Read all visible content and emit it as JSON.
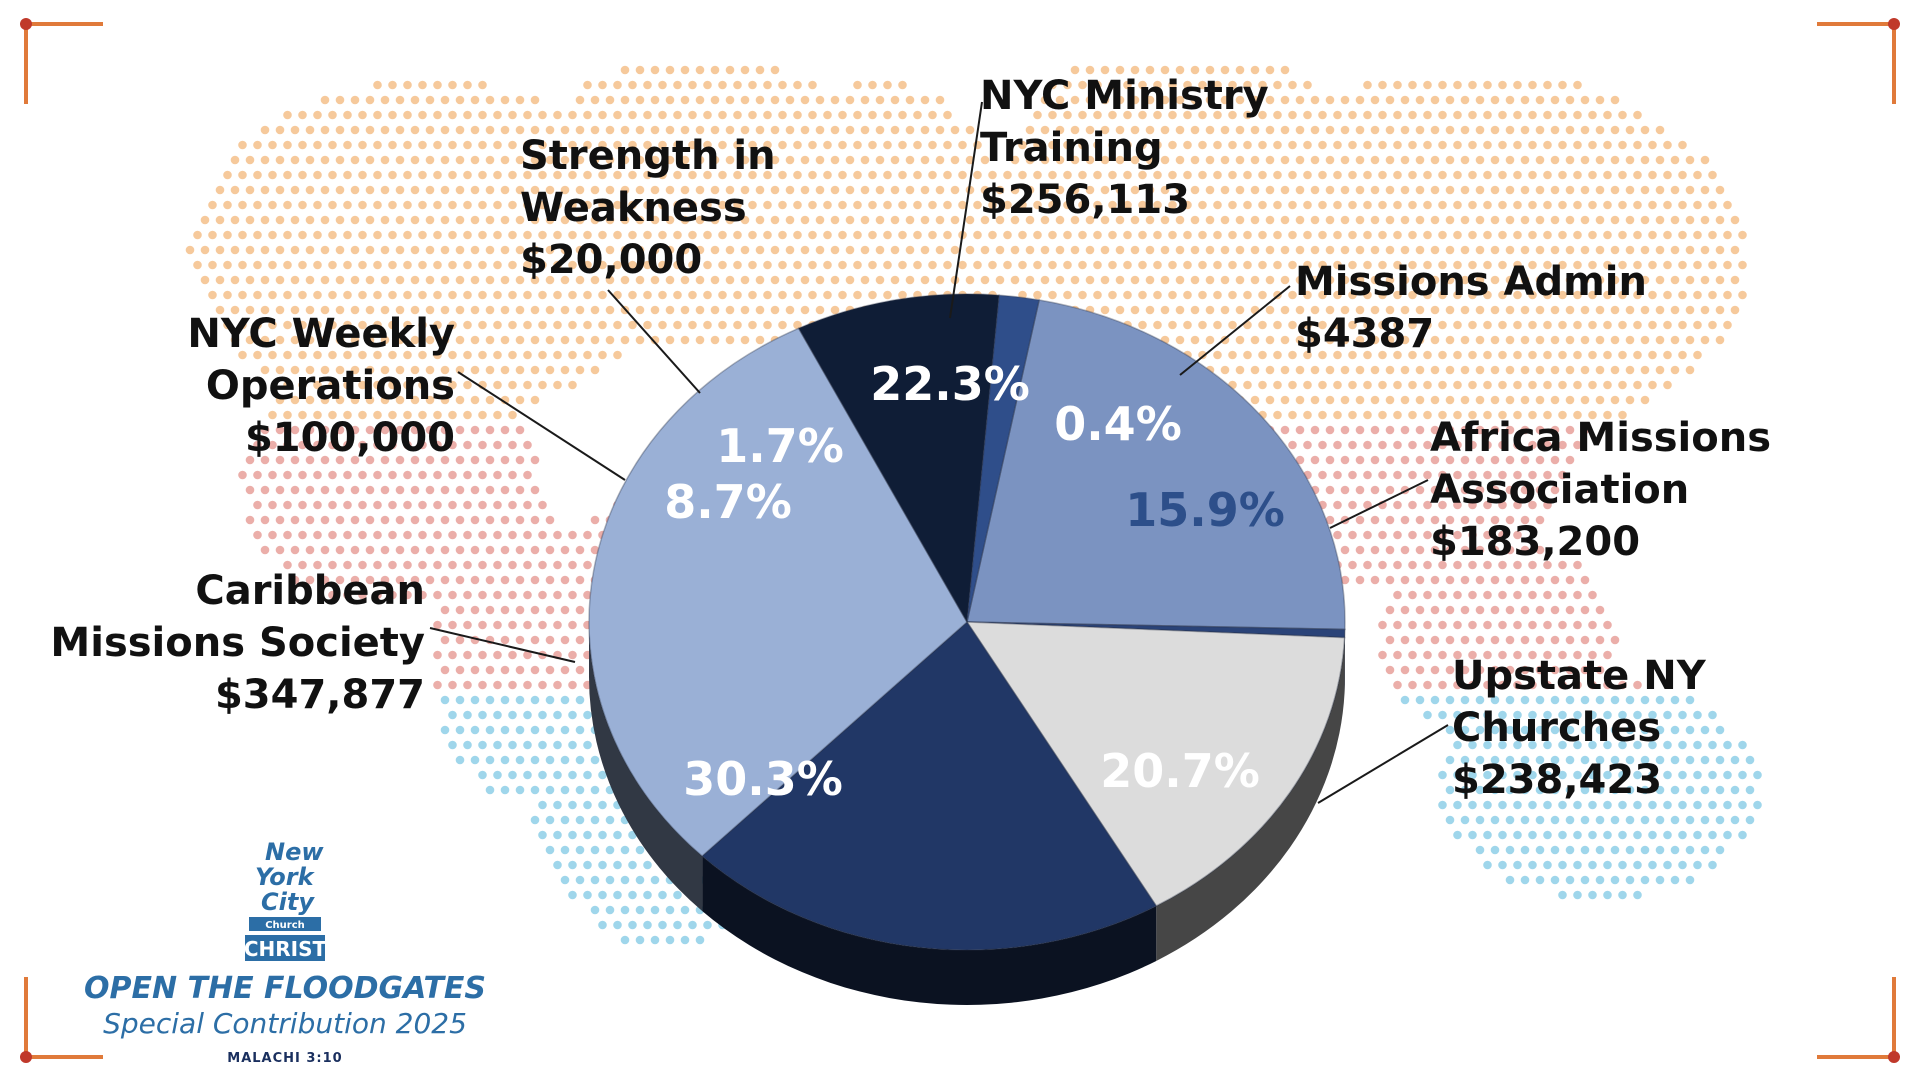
{
  "chart_data": {
    "type": "pie",
    "slices": [
      {
        "label_lines": [
          "NYC Ministry",
          "Training"
        ],
        "amount": "$256,113",
        "pct": 22.3,
        "pct_label": "22.3%",
        "color": "#7b93c1",
        "pct_color": "#ffffff"
      },
      {
        "label_lines": [
          "Missions Admin"
        ],
        "amount": "$4387",
        "pct": 0.4,
        "pct_label": "0.4%",
        "color": "#2a4378",
        "pct_color": "#ffffff"
      },
      {
        "label_lines": [
          "Africa Missions",
          "Association"
        ],
        "amount": "$183,200",
        "pct": 15.9,
        "pct_label": "15.9%",
        "color": "#dcdcdc",
        "pct_color": "#2d4f8a"
      },
      {
        "label_lines": [
          "Upstate NY",
          "Churches"
        ],
        "amount": "$238,423",
        "pct": 20.7,
        "pct_label": "20.7%",
        "color": "#213766",
        "pct_color": "#ffffff"
      },
      {
        "label_lines": [
          "Caribbean",
          "Missions Society"
        ],
        "amount": "$347,877",
        "pct": 30.3,
        "pct_label": "30.3%",
        "color": "#9ab0d6",
        "pct_color": "#ffffff"
      },
      {
        "label_lines": [
          "NYC Weekly",
          "Operations"
        ],
        "amount": "$100,000",
        "pct": 8.7,
        "pct_label": "8.7%",
        "color": "#0f1d36",
        "pct_color": "#ffffff"
      },
      {
        "label_lines": [
          "Strength in",
          "Weakness"
        ],
        "amount": "$20,000",
        "pct": 1.7,
        "pct_label": "1.7%",
        "color": "#2f4e8a",
        "pct_color": "#ffffff"
      }
    ]
  },
  "branding": {
    "logo_lines": [
      "New",
      "York",
      "City",
      "Church",
      "CHRIST"
    ],
    "campaign_title": "OPEN THE FLOODGATES",
    "campaign_subtitle": "Special Contribution 2025",
    "scripture": "MALACHI 3:10"
  },
  "colors": {
    "corner_accent": "#e07a3a",
    "corner_dot": "#c0392b",
    "map_top": "#f5c08a",
    "map_mid": "#e8a09a",
    "map_bottom": "#8ecfe8"
  }
}
